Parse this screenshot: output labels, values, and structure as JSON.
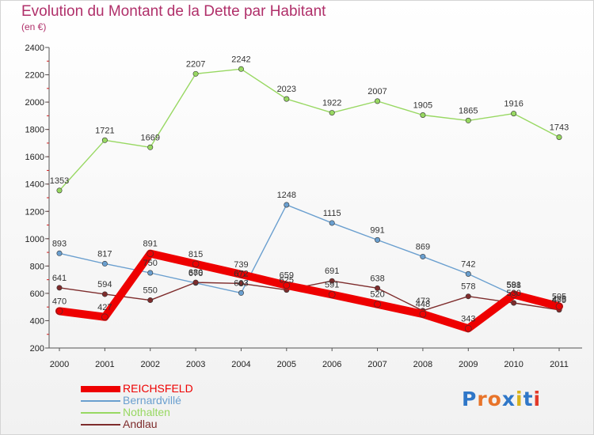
{
  "header": {
    "title": "Evolution du Montant de la Dette par Habitant",
    "subtitle": "(en €)"
  },
  "logo": {
    "text": "Proxiti",
    "colors": [
      "#2f77c8",
      "#e8742a",
      "#e8742a",
      "#2f77c8",
      "#d8b21b",
      "#2f77c8",
      "#e23a2a"
    ]
  },
  "chart_data": {
    "type": "line",
    "title": "Evolution du Montant de la Dette par Habitant",
    "subtitle": "(en €)",
    "xlabel": "",
    "ylabel": "",
    "x": [
      "2000",
      "2001",
      "2002",
      "2003",
      "2004",
      "2005",
      "2006",
      "2007",
      "2008",
      "2009",
      "2010",
      "2011"
    ],
    "ylim": [
      200,
      2400
    ],
    "yticks": [
      200,
      400,
      600,
      800,
      1000,
      1200,
      1400,
      1600,
      1800,
      2000,
      2200,
      2400
    ],
    "grid": false,
    "legend_position": "bottom-left",
    "series": [
      {
        "name": "REICHSFELD",
        "color": "#ee0000",
        "width": 10,
        "values": [
          470,
          427,
          891,
          815,
          739,
          659,
          591,
          520,
          448,
          343,
          591,
          505
        ],
        "labels": [
          "470",
          "427",
          "891",
          "815",
          "739",
          "659",
          "591",
          "520",
          "448",
          "343",
          "591",
          "505"
        ]
      },
      {
        "name": "Bernardvillé",
        "color": "#6a9fcf",
        "width": 1.4,
        "values": [
          893,
          817,
          750,
          676,
          603,
          1248,
          1115,
          991,
          869,
          742,
          588,
          485
        ],
        "labels": [
          "893",
          "817",
          "750",
          "676",
          "603",
          "1248",
          "1115",
          "991",
          "869",
          "742",
          "588",
          "485"
        ]
      },
      {
        "name": "Nothalten",
        "color": "#98d862",
        "width": 1.4,
        "values": [
          1353,
          1721,
          1669,
          2207,
          2242,
          2023,
          1922,
          2007,
          1905,
          1865,
          1916,
          1743
        ],
        "labels": [
          "1353",
          "1721",
          "1669",
          "2207",
          "2242",
          "2023",
          "1922",
          "2007",
          "1905",
          "1865",
          "1916",
          "1743"
        ]
      },
      {
        "name": "Andlau",
        "color": "#7e2c2c",
        "width": 1.4,
        "values": [
          641,
          594,
          550,
          680,
          672,
          625,
          691,
          638,
          473,
          578,
          530,
          479
        ],
        "labels": [
          "641",
          "594",
          "550",
          "680",
          "672",
          "625",
          "691",
          "638",
          "473",
          "578",
          "530",
          "479"
        ]
      }
    ]
  }
}
